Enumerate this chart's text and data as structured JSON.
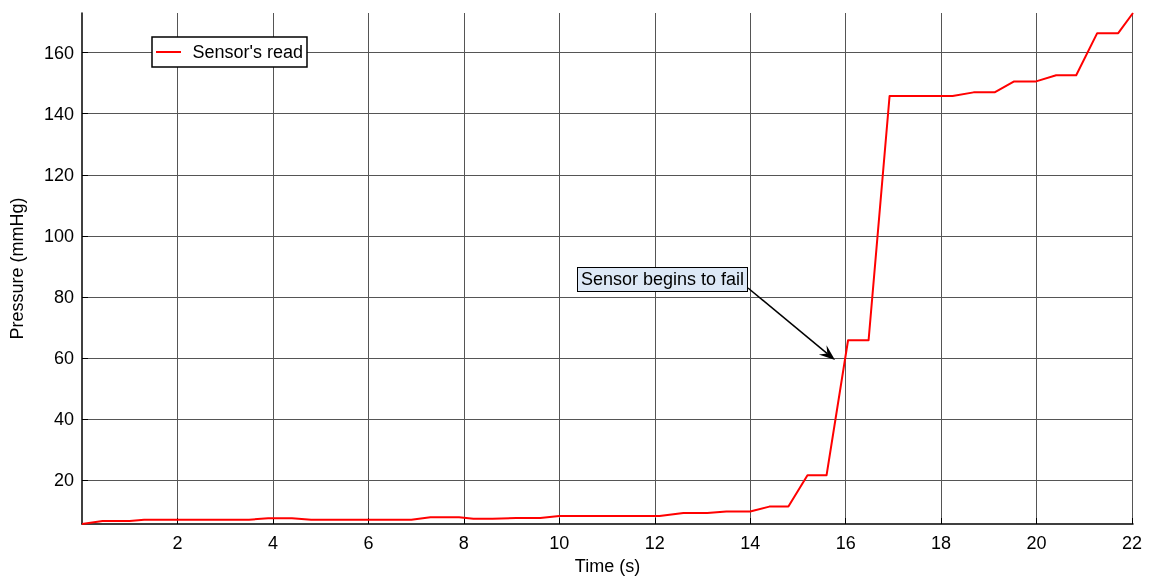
{
  "chart_data": {
    "type": "line",
    "xlabel": "Time (s)",
    "ylabel": "Pressure (mmHg)",
    "x": [
      0,
      0.43,
      1.0,
      1.3,
      3.5,
      3.9,
      4.4,
      4.8,
      6.9,
      7.3,
      7.9,
      8.2,
      8.6,
      9.1,
      9.6,
      10.0,
      12.1,
      12.6,
      13.1,
      13.5,
      14.0,
      14.4,
      14.8,
      15.2,
      15.6,
      16.05,
      16.48,
      16.92,
      18.24,
      18.68,
      19.12,
      19.53,
      19.99,
      20.41,
      20.83,
      21.27,
      21.71,
      22.02
    ],
    "series": [
      {
        "name": "Sensor's read",
        "color": "#ff0000",
        "values": [
          5.6,
          6.6,
          6.6,
          7,
          7,
          7.5,
          7.5,
          7,
          7,
          7.8,
          7.8,
          7.3,
          7.3,
          7.6,
          7.6,
          8.2,
          8.2,
          9.2,
          9.2,
          9.7,
          9.7,
          11.3,
          11.3,
          21.6,
          21.6,
          65.8,
          65.8,
          145.8,
          145.8,
          147,
          147,
          150.6,
          150.6,
          152.6,
          152.6,
          166.4,
          166.4,
          173
        ]
      }
    ],
    "xlim": [
      0,
      22.02
    ],
    "xticks": [
      2,
      4,
      6,
      8,
      10,
      12,
      14,
      16,
      18,
      20,
      22
    ],
    "ylim": [
      5.6,
      173
    ],
    "yticks": [
      20,
      40,
      60,
      80,
      100,
      120,
      140,
      160
    ],
    "annotations": [
      "Sensor begins to fail"
    ],
    "grid": true,
    "legend": "top left",
    "marker": "none",
    "line_style": "solid"
  }
}
